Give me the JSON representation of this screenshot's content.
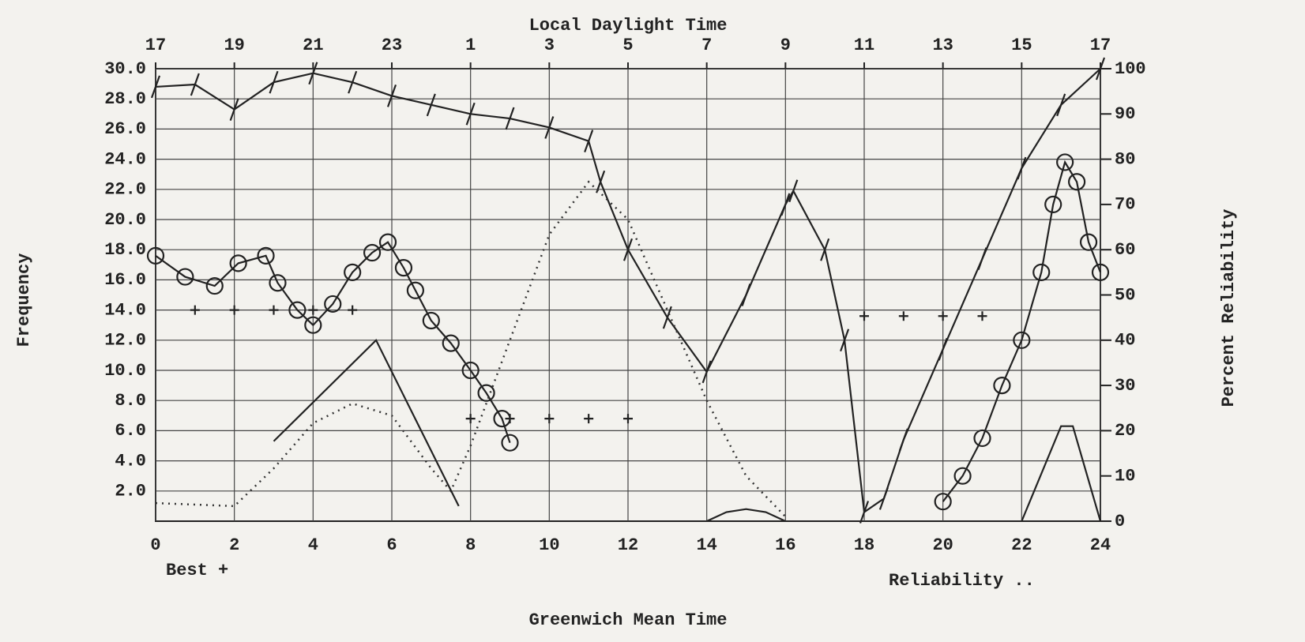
{
  "chart_data": {
    "type": "line",
    "x_label": "Greenwich Mean Time",
    "x2_label": "Local Daylight Time",
    "y_label": "Frequency",
    "y2_label": "Percent Reliability",
    "annotations": [
      "Best +",
      "Reliability .."
    ],
    "xlim": [
      0,
      24
    ],
    "xticks": [
      0,
      2,
      4,
      6,
      8,
      10,
      12,
      14,
      16,
      18,
      20,
      22,
      24
    ],
    "x2ticks": [
      {
        "value": 0,
        "label": "17"
      },
      {
        "value": 2,
        "label": "19"
      },
      {
        "value": 4,
        "label": "21"
      },
      {
        "value": 6,
        "label": "23"
      },
      {
        "value": 8,
        "label": "1"
      },
      {
        "value": 10,
        "label": "3"
      },
      {
        "value": 12,
        "label": "5"
      },
      {
        "value": 14,
        "label": "7"
      },
      {
        "value": 16,
        "label": "9"
      },
      {
        "value": 18,
        "label": "11"
      },
      {
        "value": 20,
        "label": "13"
      },
      {
        "value": 22,
        "label": "15"
      },
      {
        "value": 24,
        "label": "17"
      }
    ],
    "ylim": [
      0,
      30
    ],
    "yticks": [
      {
        "value": 2,
        "label": "2.0"
      },
      {
        "value": 4,
        "label": "4.0"
      },
      {
        "value": 6,
        "label": "6.0"
      },
      {
        "value": 8,
        "label": "8.0"
      },
      {
        "value": 10,
        "label": "10.0"
      },
      {
        "value": 12,
        "label": "12.0"
      },
      {
        "value": 14,
        "label": "14.0"
      },
      {
        "value": 16,
        "label": "16.0"
      },
      {
        "value": 18,
        "label": "18.0"
      },
      {
        "value": 20,
        "label": "20.0"
      },
      {
        "value": 22,
        "label": "22.0"
      },
      {
        "value": 24,
        "label": "24.0"
      },
      {
        "value": 26,
        "label": "26.0"
      },
      {
        "value": 28,
        "label": "28.0"
      },
      {
        "value": 30,
        "label": "30.0"
      }
    ],
    "y2lim": [
      0,
      100
    ],
    "y2ticks": [
      0,
      10,
      20,
      30,
      40,
      50,
      60,
      70,
      80,
      90,
      100
    ],
    "grid": true,
    "series": [
      {
        "style": "circles",
        "color": "#222222",
        "x": [
          0,
          0.75,
          1.5,
          2.1,
          2.8,
          3.1,
          3.6,
          4.0,
          4.5,
          5.0,
          5.5,
          5.9,
          6.3,
          6.6,
          7.0,
          7.5,
          8.0,
          8.4,
          8.8,
          9.0
        ],
        "values": [
          17.6,
          16.2,
          15.6,
          17.1,
          17.6,
          15.8,
          14.0,
          13.0,
          14.4,
          16.5,
          17.8,
          18.5,
          16.8,
          15.3,
          13.3,
          11.8,
          10.0,
          8.5,
          6.8,
          5.2
        ]
      },
      {
        "style": "circles",
        "color": "#222222",
        "x": [
          20.0,
          20.5,
          21.0,
          21.5,
          22.0,
          22.5,
          22.8,
          23.1,
          23.4,
          23.7,
          24.0
        ],
        "values": [
          1.3,
          3.0,
          5.5,
          9.0,
          12.0,
          16.5,
          21.0,
          23.8,
          22.5,
          18.5,
          16.5
        ]
      },
      {
        "style": "slashes",
        "color": "#222222",
        "axis": "y2",
        "x": [
          0,
          1,
          2,
          3,
          4,
          5,
          6,
          7,
          8,
          9,
          10,
          11,
          11.3,
          12,
          13,
          14,
          15,
          16,
          16.2,
          17,
          17.5,
          18,
          18.5,
          19,
          20,
          21,
          22,
          23,
          24
        ],
        "values": [
          96,
          96.5,
          91,
          97,
          99,
          97,
          94,
          92,
          90,
          89,
          87,
          84,
          75,
          60,
          45,
          33,
          50,
          70,
          73,
          60,
          40,
          2,
          5,
          18,
          38,
          58,
          78,
          92,
          100
        ]
      },
      {
        "style": "dotted",
        "color": "#333333",
        "x": [
          0,
          2,
          3,
          4,
          5,
          6,
          7,
          7.5,
          8,
          9,
          10,
          11,
          12,
          13,
          14,
          15,
          16
        ],
        "values": [
          1.2,
          1.0,
          3.5,
          6.5,
          7.8,
          7.0,
          3.5,
          2.0,
          5.0,
          12.0,
          19.0,
          22.5,
          20.0,
          14.0,
          8.0,
          3.0,
          0.3
        ]
      },
      {
        "style": "solid",
        "color": "#222222",
        "x": [
          3,
          5.6,
          7.7
        ],
        "values": [
          5.3,
          12.0,
          1.0
        ]
      },
      {
        "style": "solid",
        "color": "#222222",
        "x": [
          14,
          14.5,
          15,
          15.5,
          16
        ],
        "values": [
          0,
          0.6,
          0.8,
          0.6,
          0
        ]
      },
      {
        "style": "solid",
        "color": "#222222",
        "x": [
          22,
          23,
          23.3,
          24
        ],
        "values": [
          0,
          6.3,
          6.3,
          0
        ]
      },
      {
        "style": "plus",
        "color": "#222222",
        "x": [
          1,
          2,
          3,
          4,
          5,
          8,
          9,
          10,
          11,
          12,
          18,
          19,
          20,
          21
        ],
        "values": [
          14,
          14,
          14,
          14,
          14,
          6.8,
          6.8,
          6.8,
          6.8,
          6.8,
          13.6,
          13.6,
          13.6,
          13.6
        ]
      }
    ]
  }
}
